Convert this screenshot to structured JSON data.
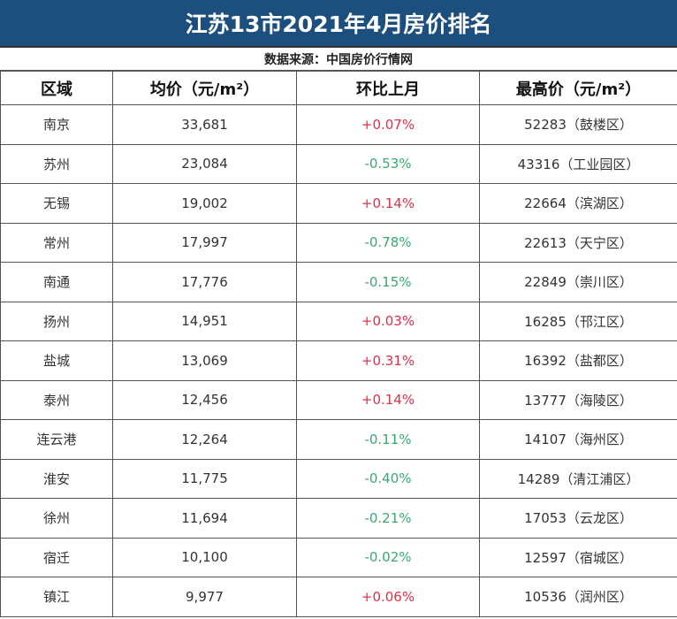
{
  "title": "江苏13市2021年4月房价排名",
  "source": "数据来源：中国房价行情网",
  "headers": [
    "区域",
    "均价（元/m²）",
    "环比上月",
    "最高价（元/m²）"
  ],
  "colors": {
    "title_bg": "#1d4f7e",
    "up": "#e0304a",
    "down": "#3aa873"
  },
  "rows": [
    [
      "南京",
      "33,681",
      "+0.07%",
      "52283（鼓楼区）"
    ],
    [
      "苏州",
      "23,084",
      "-0.53%",
      "43316（工业园区）"
    ],
    [
      "无锡",
      "19,002",
      "+0.14%",
      "22664（滨湖区）"
    ],
    [
      "常州",
      "17,997",
      "-0.78%",
      "22613（天宁区）"
    ],
    [
      "南通",
      "17,776",
      "-0.15%",
      "22849（崇川区）"
    ],
    [
      "扬州",
      "14,951",
      "+0.03%",
      "16285（邗江区）"
    ],
    [
      "盐城",
      "13,069",
      "+0.31%",
      "16392（盐都区）"
    ],
    [
      "泰州",
      "12,456",
      "+0.14%",
      "13777（海陵区）"
    ],
    [
      "连云港",
      "12,264",
      "-0.11%",
      "14107（海州区）"
    ],
    [
      "淮安",
      "11,775",
      "-0.40%",
      "14289（清江浦区）"
    ],
    [
      "徐州",
      "11,694",
      "-0.21%",
      "17053（云龙区）"
    ],
    [
      "宿迁",
      "10,100",
      "-0.02%",
      "12597（宿城区）"
    ],
    [
      "镇江",
      "9,977",
      "+0.06%",
      "10536（润州区）"
    ]
  ]
}
